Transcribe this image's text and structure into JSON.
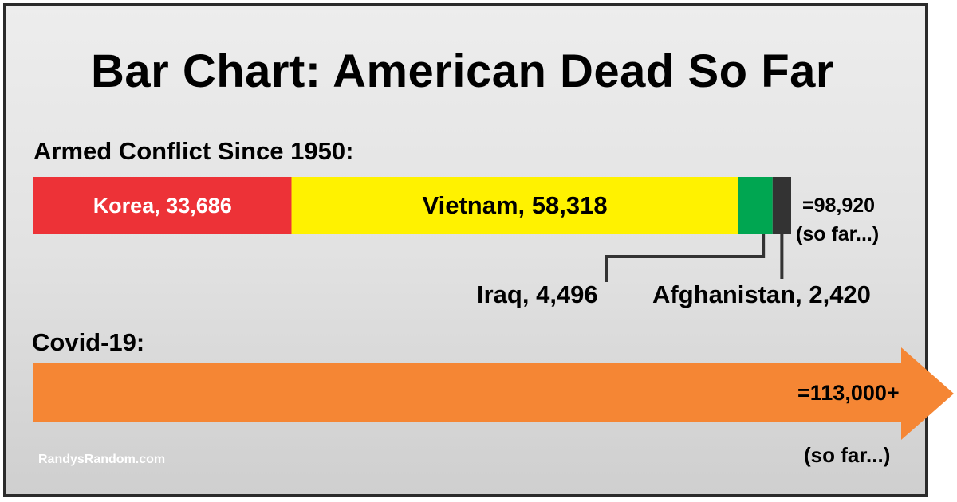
{
  "chart_data": {
    "type": "bar",
    "title": "Bar Chart: American Dead So Far",
    "groups": [
      {
        "label": "Armed Conflict Since 1950:",
        "stacked": true,
        "segments": [
          {
            "name": "Korea",
            "value": 33686,
            "label": "Korea, 33,686",
            "color": "#ed3237"
          },
          {
            "name": "Vietnam",
            "value": 58318,
            "label": "Vietnam, 58,318",
            "color": "#fff200"
          },
          {
            "name": "Iraq",
            "value": 4496,
            "label": "Iraq, 4,496",
            "color": "#00a651"
          },
          {
            "name": "Afghanistan",
            "value": 2420,
            "label": "Afghanistan, 2,420",
            "color": "#333333"
          }
        ],
        "total_label": "=98,920",
        "total_note": "(so far...)"
      },
      {
        "label": "Covid-19:",
        "stacked": false,
        "value": 113000,
        "value_label": "=113,000+",
        "note": "(so far...)",
        "color": "#f58634",
        "arrow": true
      }
    ]
  },
  "credit": "RandysRandom.com"
}
